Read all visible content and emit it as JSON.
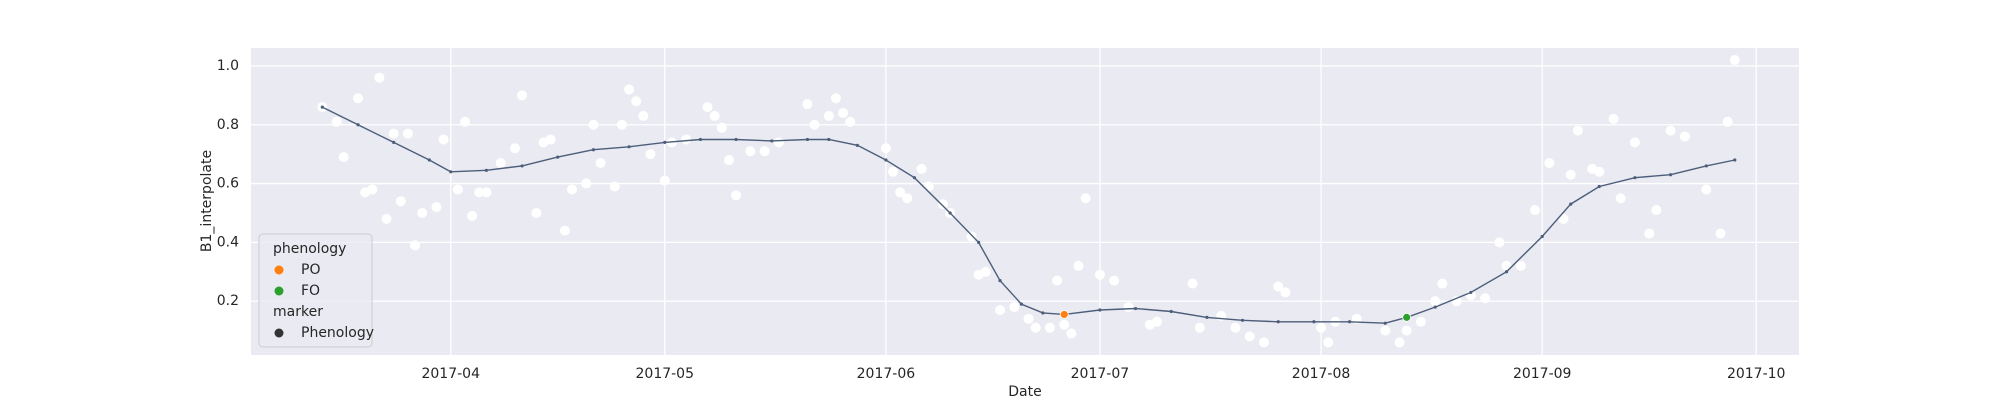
{
  "chart_data": {
    "type": "scatter",
    "x_label": "Date",
    "y_label": "B1_interpolate",
    "background": "#eaeaf2",
    "grid": true,
    "xlim": [
      "2017-03-04",
      "2017-10-07"
    ],
    "ylim": [
      0.017,
      1.061
    ],
    "xticks": [
      {
        "value": "2017-04-01",
        "label": "2017-04"
      },
      {
        "value": "2017-05-01",
        "label": "2017-05"
      },
      {
        "value": "2017-06-01",
        "label": "2017-06"
      },
      {
        "value": "2017-07-01",
        "label": "2017-07"
      },
      {
        "value": "2017-08-01",
        "label": "2017-08"
      },
      {
        "value": "2017-09-01",
        "label": "2017-09"
      },
      {
        "value": "2017-10-01",
        "label": "2017-10"
      }
    ],
    "yticks": [
      0.2,
      0.4,
      0.6,
      0.8,
      {
        "value": 1,
        "label": "1.0"
      }
    ],
    "observed": {
      "color": "#ffffff",
      "x": [
        "2017-03-14",
        "2017-03-16",
        "2017-03-17",
        "2017-03-19",
        "2017-03-20",
        "2017-03-21",
        "2017-03-22",
        "2017-03-23",
        "2017-03-24",
        "2017-03-25",
        "2017-03-26",
        "2017-03-27",
        "2017-03-28",
        "2017-03-30",
        "2017-03-31",
        "2017-04-02",
        "2017-04-03",
        "2017-04-04",
        "2017-04-05",
        "2017-04-06",
        "2017-04-08",
        "2017-04-10",
        "2017-04-11",
        "2017-04-13",
        "2017-04-14",
        "2017-04-15",
        "2017-04-17",
        "2017-04-18",
        "2017-04-20",
        "2017-04-21",
        "2017-04-22",
        "2017-04-24",
        "2017-04-25",
        "2017-04-26",
        "2017-04-27",
        "2017-04-28",
        "2017-04-29",
        "2017-05-01",
        "2017-05-02",
        "2017-05-04",
        "2017-05-07",
        "2017-05-08",
        "2017-05-09",
        "2017-05-10",
        "2017-05-11",
        "2017-05-13",
        "2017-05-15",
        "2017-05-17",
        "2017-05-21",
        "2017-05-22",
        "2017-05-24",
        "2017-05-25",
        "2017-05-26",
        "2017-05-27",
        "2017-06-01",
        "2017-06-02",
        "2017-06-03",
        "2017-06-04",
        "2017-06-06",
        "2017-06-07",
        "2017-06-09",
        "2017-06-10",
        "2017-06-13",
        "2017-06-14",
        "2017-06-15",
        "2017-06-17",
        "2017-06-19",
        "2017-06-21",
        "2017-06-22",
        "2017-06-24",
        "2017-06-25",
        "2017-06-26",
        "2017-06-27",
        "2017-06-28",
        "2017-06-29",
        "2017-07-01",
        "2017-07-03",
        "2017-07-05",
        "2017-07-08",
        "2017-07-09",
        "2017-07-14",
        "2017-07-15",
        "2017-07-18",
        "2017-07-20",
        "2017-07-22",
        "2017-07-24",
        "2017-07-26",
        "2017-07-27",
        "2017-08-01",
        "2017-08-02",
        "2017-08-03",
        "2017-08-06",
        "2017-08-10",
        "2017-08-12",
        "2017-08-13",
        "2017-08-15",
        "2017-08-17",
        "2017-08-18",
        "2017-08-20",
        "2017-08-22",
        "2017-08-24",
        "2017-08-26",
        "2017-08-27",
        "2017-08-29",
        "2017-08-31",
        "2017-09-02",
        "2017-09-04",
        "2017-09-05",
        "2017-09-06",
        "2017-09-08",
        "2017-09-09",
        "2017-09-11",
        "2017-09-12",
        "2017-09-14",
        "2017-09-16",
        "2017-09-17",
        "2017-09-19",
        "2017-09-21",
        "2017-09-24",
        "2017-09-26",
        "2017-09-27",
        "2017-09-28"
      ],
      "values": [
        0.86,
        0.81,
        0.69,
        0.89,
        0.57,
        0.58,
        0.96,
        0.48,
        0.77,
        0.54,
        0.77,
        0.39,
        0.5,
        0.52,
        0.75,
        0.58,
        0.81,
        0.49,
        0.57,
        0.57,
        0.67,
        0.72,
        0.9,
        0.5,
        0.74,
        0.75,
        0.44,
        0.58,
        0.6,
        0.8,
        0.67,
        0.59,
        0.8,
        0.92,
        0.88,
        0.83,
        0.7,
        0.61,
        0.74,
        0.75,
        0.86,
        0.83,
        0.79,
        0.68,
        0.56,
        0.71,
        0.71,
        0.74,
        0.87,
        0.8,
        0.83,
        0.89,
        0.84,
        0.81,
        0.72,
        0.64,
        0.57,
        0.55,
        0.65,
        0.59,
        0.53,
        0.5,
        0.42,
        0.29,
        0.3,
        0.17,
        0.18,
        0.14,
        0.11,
        0.11,
        0.27,
        0.12,
        0.09,
        0.32,
        0.55,
        0.29,
        0.27,
        0.18,
        0.12,
        0.13,
        0.26,
        0.11,
        0.15,
        0.11,
        0.08,
        0.06,
        0.25,
        0.23,
        0.11,
        0.06,
        0.13,
        0.14,
        0.1,
        0.06,
        0.1,
        0.13,
        0.2,
        0.26,
        0.2,
        0.22,
        0.21,
        0.4,
        0.32,
        0.32,
        0.51,
        0.67,
        0.48,
        0.63,
        0.78,
        0.65,
        0.64,
        0.82,
        0.55,
        0.74,
        0.43,
        0.51,
        0.78,
        0.76,
        0.58,
        0.43,
        0.81,
        1.02
      ]
    },
    "interpolated": {
      "color": "#4c5e7a",
      "x": [
        "2017-03-14",
        "2017-03-19",
        "2017-03-24",
        "2017-03-29",
        "2017-04-01",
        "2017-04-06",
        "2017-04-11",
        "2017-04-16",
        "2017-04-21",
        "2017-04-26",
        "2017-05-01",
        "2017-05-06",
        "2017-05-11",
        "2017-05-16",
        "2017-05-21",
        "2017-05-24",
        "2017-05-28",
        "2017-06-01",
        "2017-06-05",
        "2017-06-10",
        "2017-06-14",
        "2017-06-17",
        "2017-06-20",
        "2017-06-23",
        "2017-06-26",
        "2017-07-01",
        "2017-07-06",
        "2017-07-11",
        "2017-07-16",
        "2017-07-21",
        "2017-07-26",
        "2017-07-31",
        "2017-08-05",
        "2017-08-10",
        "2017-08-13",
        "2017-08-17",
        "2017-08-22",
        "2017-08-27",
        "2017-09-01",
        "2017-09-05",
        "2017-09-09",
        "2017-09-14",
        "2017-09-19",
        "2017-09-24",
        "2017-09-28"
      ],
      "values": [
        0.86,
        0.8,
        0.74,
        0.68,
        0.64,
        0.645,
        0.66,
        0.69,
        0.715,
        0.725,
        0.74,
        0.75,
        0.75,
        0.745,
        0.75,
        0.75,
        0.73,
        0.68,
        0.62,
        0.5,
        0.4,
        0.27,
        0.19,
        0.16,
        0.155,
        0.17,
        0.175,
        0.165,
        0.145,
        0.135,
        0.13,
        0.13,
        0.13,
        0.125,
        0.145,
        0.18,
        0.23,
        0.3,
        0.42,
        0.53,
        0.59,
        0.62,
        0.63,
        0.66,
        0.68
      ]
    },
    "series": [
      {
        "name": "PO",
        "color": "#ff7f0e",
        "x": [
          "2017-06-26"
        ],
        "values": [
          0.155
        ]
      },
      {
        "name": "FO",
        "color": "#2ca02c",
        "x": [
          "2017-08-13"
        ],
        "values": [
          0.145
        ]
      }
    ],
    "legend": {
      "position": "lower left",
      "hue_title": "phenology",
      "style_title": "marker",
      "style_entries": [
        {
          "name": "Phenology",
          "color": "#333333"
        }
      ]
    }
  }
}
